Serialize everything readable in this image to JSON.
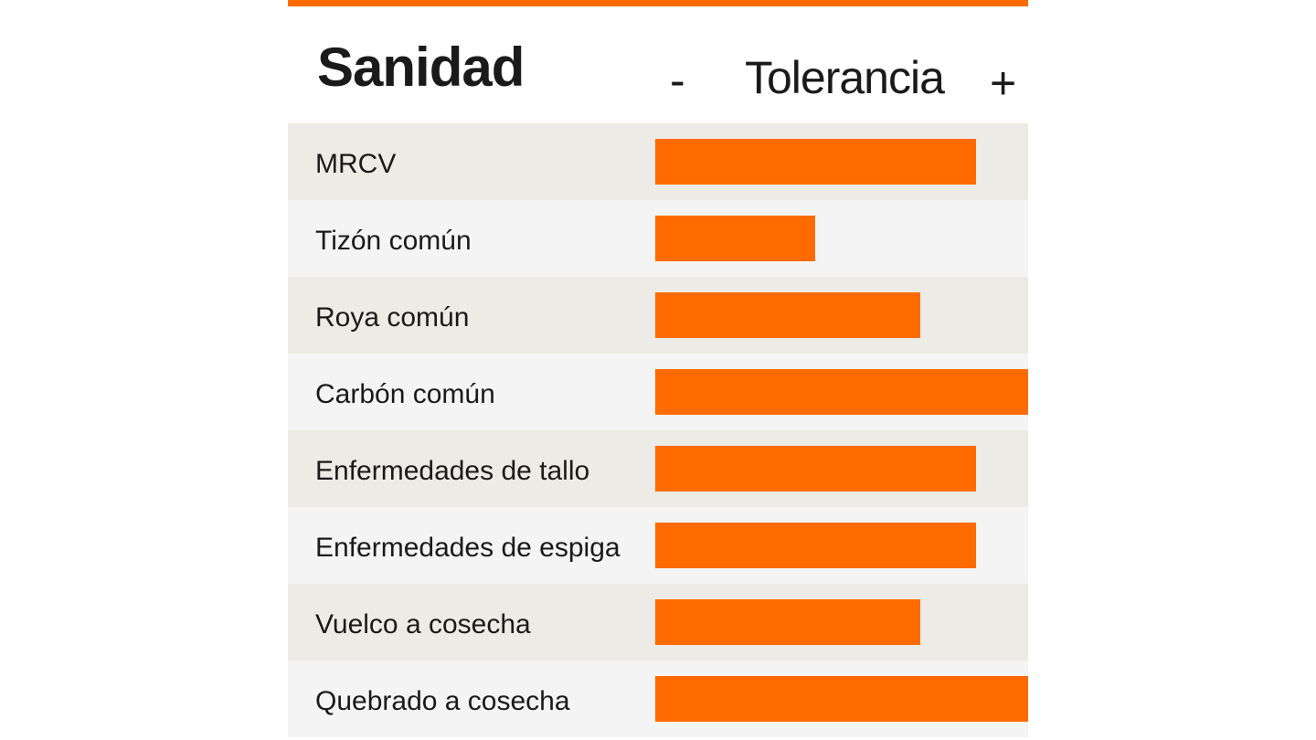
{
  "header": {
    "title": "Sanidad",
    "scale_min": "-",
    "scale_label": "Tolerancia",
    "scale_max": "+"
  },
  "colors": {
    "accent": "#ff6b00",
    "row_odd": "#edebe5",
    "row_even": "#f4f4f4",
    "text": "#1a1a1a"
  },
  "chart_data": {
    "type": "bar",
    "orientation": "horizontal",
    "title": "Sanidad",
    "xlabel": "Tolerancia",
    "xlim": [
      0,
      100
    ],
    "grid": false,
    "categories": [
      "MRCV",
      "Tizón común",
      "Roya común",
      "Carbón común",
      "Enfermedades de tallo",
      "Enfermedades de espiga",
      "Vuelco a cosecha",
      "Quebrado a cosecha"
    ],
    "values": [
      86,
      43,
      71,
      100,
      86,
      86,
      71,
      100
    ]
  }
}
